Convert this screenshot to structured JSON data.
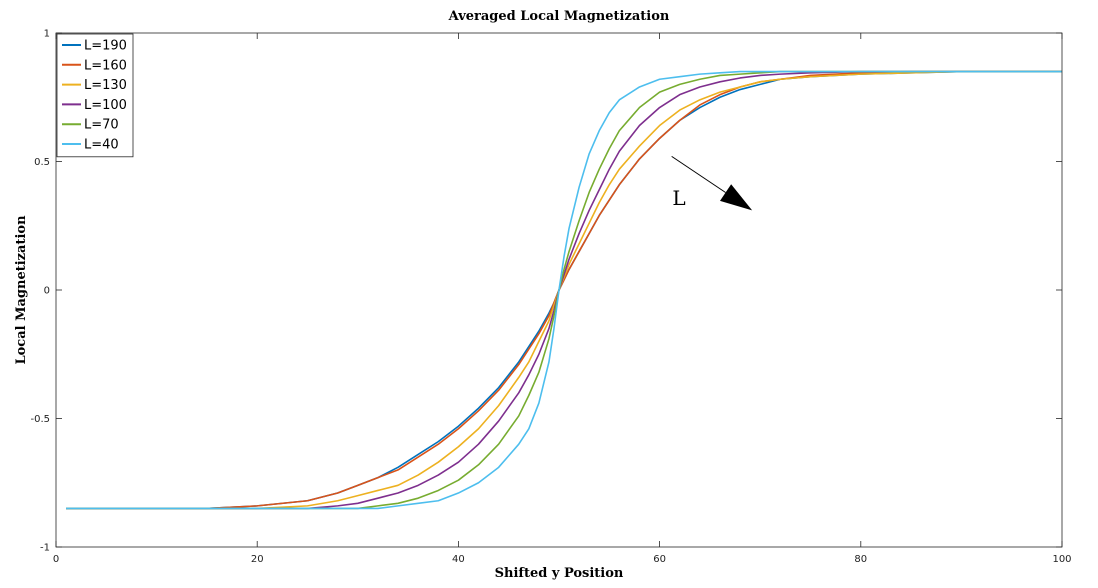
{
  "chart_data": {
    "type": "line",
    "title": "Averaged Local Magnetization",
    "xlabel": "Shifted y Position",
    "ylabel": "Local Magnetization",
    "xlim": [
      0,
      100
    ],
    "ylim": [
      -1,
      1
    ],
    "xticks": [
      0,
      20,
      40,
      60,
      80,
      100
    ],
    "yticks": [
      -1,
      -0.5,
      0,
      0.5,
      1
    ],
    "yticklabels": [
      "-1",
      "-0.5",
      "0",
      "0.5",
      "1"
    ],
    "grid": false,
    "legend_position": "top-left",
    "annotation": {
      "text": "L",
      "arrow_from": [
        61.2,
        0.52
      ],
      "arrow_to": [
        69.2,
        0.31
      ]
    },
    "x": [
      1,
      5,
      10,
      15,
      20,
      25,
      28,
      30,
      32,
      34,
      36,
      38,
      40,
      42,
      44,
      46,
      47,
      48,
      49,
      49.5,
      50,
      50.5,
      51,
      52,
      53,
      54,
      55,
      56,
      58,
      60,
      62,
      64,
      66,
      68,
      70,
      72,
      75,
      80,
      85,
      90,
      95,
      100
    ],
    "series": [
      {
        "name": "L=190",
        "color": "#0072BD",
        "values": [
          -0.85,
          -0.85,
          -0.85,
          -0.85,
          -0.84,
          -0.82,
          -0.79,
          -0.76,
          -0.73,
          -0.69,
          -0.64,
          -0.59,
          -0.53,
          -0.46,
          -0.38,
          -0.28,
          -0.22,
          -0.16,
          -0.09,
          -0.05,
          0.0,
          0.04,
          0.08,
          0.15,
          0.22,
          0.29,
          0.35,
          0.41,
          0.51,
          0.59,
          0.66,
          0.71,
          0.75,
          0.78,
          0.8,
          0.82,
          0.83,
          0.84,
          0.845,
          0.85,
          0.85,
          0.85
        ]
      },
      {
        "name": "L=160",
        "color": "#D95319",
        "values": [
          -0.85,
          -0.85,
          -0.85,
          -0.85,
          -0.84,
          -0.82,
          -0.79,
          -0.76,
          -0.73,
          -0.7,
          -0.65,
          -0.6,
          -0.54,
          -0.47,
          -0.39,
          -0.29,
          -0.23,
          -0.17,
          -0.1,
          -0.05,
          0.0,
          0.04,
          0.08,
          0.15,
          0.22,
          0.29,
          0.35,
          0.41,
          0.51,
          0.59,
          0.66,
          0.72,
          0.76,
          0.79,
          0.81,
          0.82,
          0.835,
          0.845,
          0.85,
          0.85,
          0.85,
          0.85
        ]
      },
      {
        "name": "L=130",
        "color": "#EDB120",
        "values": [
          -0.85,
          -0.85,
          -0.85,
          -0.85,
          -0.85,
          -0.84,
          -0.82,
          -0.8,
          -0.78,
          -0.76,
          -0.72,
          -0.67,
          -0.61,
          -0.54,
          -0.45,
          -0.34,
          -0.28,
          -0.2,
          -0.12,
          -0.06,
          0.0,
          0.05,
          0.1,
          0.18,
          0.26,
          0.34,
          0.41,
          0.47,
          0.56,
          0.64,
          0.7,
          0.74,
          0.77,
          0.79,
          0.81,
          0.82,
          0.83,
          0.84,
          0.845,
          0.85,
          0.85,
          0.85
        ]
      },
      {
        "name": "L=100",
        "color": "#7E2F8E",
        "values": [
          -0.85,
          -0.85,
          -0.85,
          -0.85,
          -0.85,
          -0.85,
          -0.84,
          -0.83,
          -0.81,
          -0.79,
          -0.76,
          -0.72,
          -0.67,
          -0.6,
          -0.51,
          -0.4,
          -0.33,
          -0.25,
          -0.15,
          -0.08,
          0.0,
          0.06,
          0.12,
          0.22,
          0.31,
          0.39,
          0.47,
          0.54,
          0.64,
          0.71,
          0.76,
          0.79,
          0.81,
          0.825,
          0.835,
          0.84,
          0.845,
          0.85,
          0.85,
          0.85,
          0.85,
          0.85
        ]
      },
      {
        "name": "L=70",
        "color": "#77AC30",
        "values": [
          -0.85,
          -0.85,
          -0.85,
          -0.85,
          -0.85,
          -0.85,
          -0.85,
          -0.85,
          -0.84,
          -0.83,
          -0.81,
          -0.78,
          -0.74,
          -0.68,
          -0.6,
          -0.49,
          -0.41,
          -0.32,
          -0.19,
          -0.1,
          0.0,
          0.08,
          0.15,
          0.27,
          0.38,
          0.47,
          0.55,
          0.62,
          0.71,
          0.77,
          0.8,
          0.82,
          0.835,
          0.84,
          0.845,
          0.85,
          0.85,
          0.85,
          0.85,
          0.85,
          0.85,
          0.85
        ]
      },
      {
        "name": "L=40",
        "color": "#4DBEEE",
        "values": [
          -0.85,
          -0.85,
          -0.85,
          -0.85,
          -0.85,
          -0.85,
          -0.85,
          -0.85,
          -0.85,
          -0.84,
          -0.83,
          -0.82,
          -0.79,
          -0.75,
          -0.69,
          -0.6,
          -0.54,
          -0.44,
          -0.28,
          -0.15,
          0.0,
          0.13,
          0.24,
          0.4,
          0.53,
          0.62,
          0.69,
          0.74,
          0.79,
          0.82,
          0.83,
          0.84,
          0.845,
          0.85,
          0.85,
          0.85,
          0.85,
          0.85,
          0.85,
          0.85,
          0.85,
          0.85
        ]
      }
    ]
  }
}
